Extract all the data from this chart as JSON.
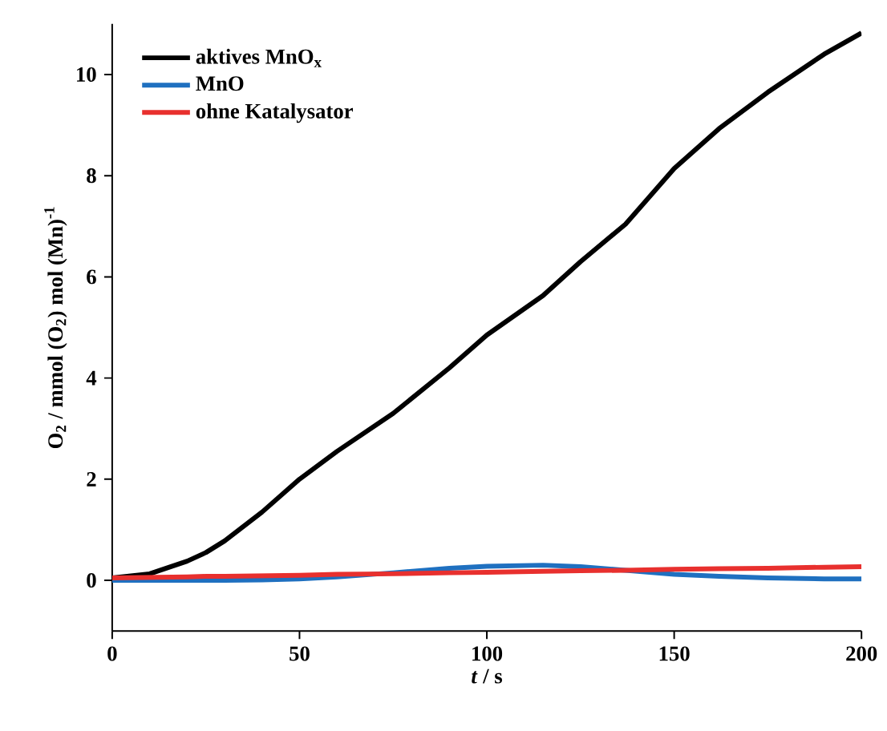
{
  "chart_data": {
    "type": "line",
    "xlabel": "*t* / s",
    "ylabel": "O$_{2}$ / mmol (O$_{2}$) mol (Mn)$^{-1}$",
    "x": [
      0,
      10,
      20,
      25,
      30,
      40,
      50,
      60,
      75,
      90,
      100,
      115,
      125,
      137,
      150,
      162,
      175,
      190,
      200
    ],
    "series": [
      {
        "name": "aktives MnO$_{x}$",
        "color": "#000000",
        "values": [
          0.05,
          0.13,
          0.38,
          0.55,
          0.78,
          1.35,
          2.0,
          2.55,
          3.3,
          4.2,
          4.85,
          5.63,
          6.3,
          7.04,
          8.14,
          8.93,
          9.65,
          10.4,
          10.82
        ]
      },
      {
        "name": "MnO",
        "color": "#1f70c0",
        "values": [
          0,
          0,
          0,
          0,
          0,
          0.01,
          0.03,
          0.07,
          0.15,
          0.24,
          0.28,
          0.3,
          0.27,
          0.2,
          0.12,
          0.08,
          0.05,
          0.03,
          0.03
        ]
      },
      {
        "name": "ohne Katalysator",
        "color": "#e8302e",
        "values": [
          0.05,
          0.06,
          0.07,
          0.08,
          0.08,
          0.09,
          0.1,
          0.12,
          0.13,
          0.15,
          0.16,
          0.18,
          0.19,
          0.2,
          0.22,
          0.23,
          0.24,
          0.26,
          0.27
        ]
      }
    ],
    "xlim": [
      0,
      200
    ],
    "ylim": [
      -1,
      11
    ],
    "xticks": [
      0,
      50,
      100,
      150,
      200
    ],
    "yticks": [
      0,
      2,
      4,
      6,
      8,
      10
    ],
    "legend": "top left",
    "line_style": "solid",
    "marker": "none"
  }
}
